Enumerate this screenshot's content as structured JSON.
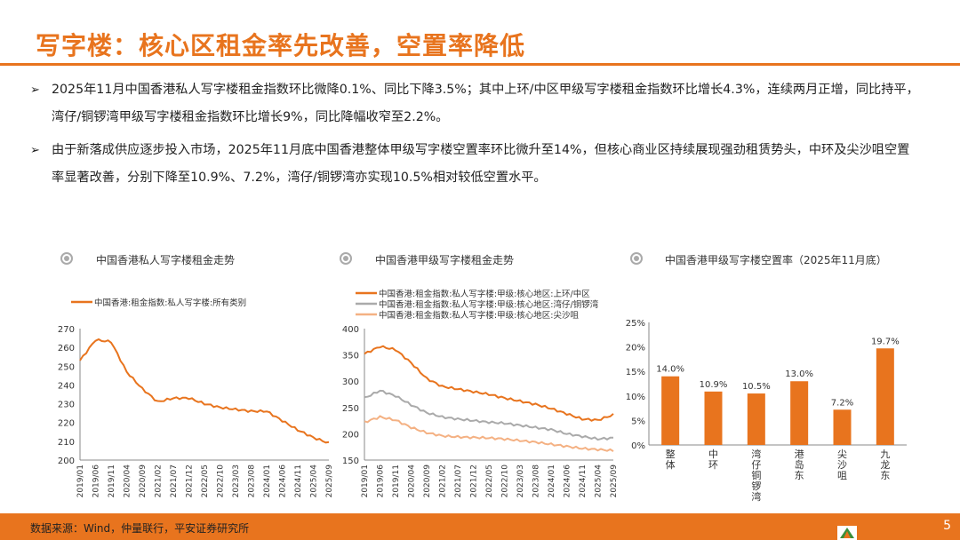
{
  "title": "写字楼：核心区租金率先改善，空置率降低",
  "bullets": [
    {
      "marker": "➢",
      "text": "2025年11月中国香港私人写字楼租金指数环比微降0.1%、同比下降3.5%；其中上环/中区甲级写字楼租金指数环比增长4.3%，连续两月正增，同比持平，湾仔/铜锣湾甲级写字楼租金指数环比增长9%，同比降幅收窄至2.2%。"
    },
    {
      "marker": "➢",
      "text": "由于新落成供应逐步投入市场，2025年11月底中国香港整体甲级写字楼空置率环比微升至14%，但核心商业区持续展现强劲租赁势头，中环及尖沙咀空置率显著改善，分别下降至10.9%、7.2%，湾仔/铜锣湾亦实现10.5%相对较低空置水平。"
    }
  ],
  "panels": {
    "p1_title": "中国香港私人写字楼租金走势",
    "p2_title": "中国香港甲级写字楼租金走势",
    "p3_title": "中国香港甲级写字楼空置率（2025年11月底）"
  },
  "footer": {
    "source": "数据来源：Wind，仲量联行，平安证券研究所",
    "page": "5"
  },
  "colors": {
    "accent": "#E8741E",
    "gray": "#AAAAAA",
    "light": "#F4B183"
  },
  "chart_data": [
    {
      "type": "line",
      "x_ticks": [
        "2019/01",
        "2019/06",
        "2019/11",
        "2020/04",
        "2020/09",
        "2021/02",
        "2021/07",
        "2021/12",
        "2022/05",
        "2022/10",
        "2023/03",
        "2023/08",
        "2024/01",
        "2024/06",
        "2024/11",
        "2025/04",
        "2025/09"
      ],
      "ylim": [
        200,
        270
      ],
      "y_ticks": [
        200,
        210,
        220,
        230,
        240,
        250,
        260,
        270
      ],
      "series": [
        {
          "name": "中国香港:租金指数:私人写字楼:所有类别",
          "color": "#E8741E",
          "values": [
            253,
            264,
            263,
            247,
            238,
            231,
            233,
            233,
            230,
            228,
            227,
            226,
            226,
            221,
            216,
            212,
            209
          ]
        }
      ]
    },
    {
      "type": "line",
      "x_ticks": [
        "2019/01",
        "2019/06",
        "2019/11",
        "2020/04",
        "2020/09",
        "2021/02",
        "2021/07",
        "2021/12",
        "2022/05",
        "2022/10",
        "2023/03",
        "2023/08",
        "2024/01",
        "2024/06",
        "2024/11",
        "2025/04",
        "2025/09"
      ],
      "ylim": [
        150,
        400
      ],
      "y_ticks": [
        150,
        200,
        250,
        300,
        350,
        400
      ],
      "series": [
        {
          "name": "中国香港:租金指数:私人写字楼:甲级:核心地区:上环/中区",
          "color": "#E8741E",
          "values": [
            352,
            366,
            360,
            335,
            305,
            290,
            285,
            280,
            275,
            268,
            262,
            256,
            248,
            238,
            228,
            226,
            236
          ]
        },
        {
          "name": "中国香港:租金指数:私人写字楼:甲级:核心地区:湾仔/铜锣湾",
          "color": "#AAAAAA",
          "values": [
            268,
            282,
            272,
            255,
            240,
            232,
            228,
            225,
            222,
            220,
            216,
            212,
            208,
            200,
            195,
            190,
            192
          ]
        },
        {
          "name": "中国香港:租金指数:私人写字楼:甲级:核心地区:尖沙咀",
          "color": "#F4B183",
          "values": [
            222,
            232,
            226,
            212,
            202,
            196,
            194,
            193,
            192,
            190,
            187,
            184,
            180,
            176,
            172,
            170,
            168
          ]
        }
      ]
    },
    {
      "type": "bar",
      "categories": [
        "整体",
        "中环",
        "湾仔铜锣湾",
        "港岛东",
        "尖沙咀",
        "九龙东"
      ],
      "values": [
        14.0,
        10.9,
        10.5,
        13.0,
        7.2,
        19.7
      ],
      "labels": [
        "14.0%",
        "10.9%",
        "10.5%",
        "13.0%",
        "7.2%",
        "19.7%"
      ],
      "ylim": [
        0,
        25
      ],
      "y_ticks": [
        "0%",
        "5%",
        "10%",
        "15%",
        "20%",
        "25%"
      ]
    }
  ]
}
